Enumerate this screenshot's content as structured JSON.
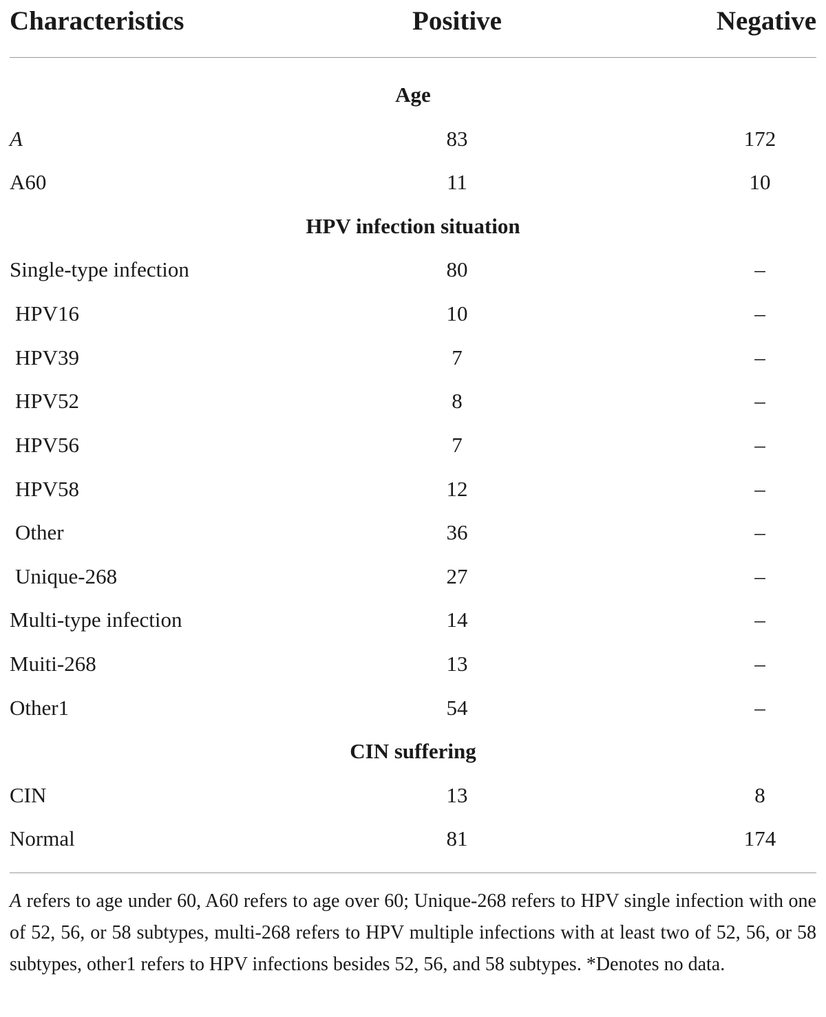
{
  "header": {
    "characteristics": "Characteristics",
    "positive": "Positive",
    "negative": "Negative"
  },
  "sections": {
    "age": "Age",
    "hpv": "HPV infection situation",
    "cin": "CIN suffering"
  },
  "rows": [
    {
      "label": "A",
      "positive": "83",
      "negative": "172"
    },
    {
      "label": "A60",
      "positive": "11",
      "negative": "10"
    },
    {
      "label": "Single-type infection",
      "positive": "80",
      "negative": "–"
    },
    {
      "label": "HPV16",
      "positive": "10",
      "negative": "–"
    },
    {
      "label": "HPV39",
      "positive": "7",
      "negative": "–"
    },
    {
      "label": "HPV52",
      "positive": "8",
      "negative": "–"
    },
    {
      "label": "HPV56",
      "positive": "7",
      "negative": "–"
    },
    {
      "label": "HPV58",
      "positive": "12",
      "negative": "–"
    },
    {
      "label": "Other",
      "positive": "36",
      "negative": "–"
    },
    {
      "label": "Unique-268",
      "positive": "27",
      "negative": "–"
    },
    {
      "label": "Multi-type infection",
      "positive": "14",
      "negative": "–"
    },
    {
      "label": "Muiti-268",
      "positive": "13",
      "negative": "–"
    },
    {
      "label": "Other1",
      "positive": "54",
      "negative": "–"
    },
    {
      "label": "CIN",
      "positive": "13",
      "negative": "8"
    },
    {
      "label": "Normal",
      "positive": "81",
      "negative": "174"
    }
  ],
  "footnote": {
    "lead": "A",
    "text": " refers to age under 60, A60 refers to age over 60; Unique-268 refers to HPV single infection with one of 52, 56, or 58 subtypes, multi-268 refers to HPV multiple infections with at least two of 52, 56, or 58 subtypes, other1 refers to HPV infections besides 52, 56, and 58 subtypes. *Denotes no data."
  }
}
